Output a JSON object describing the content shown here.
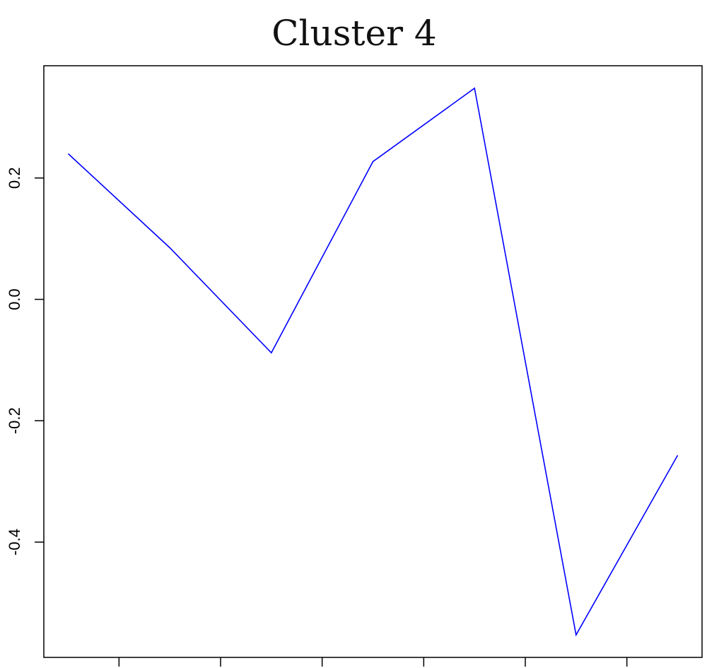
{
  "chart_data": {
    "type": "line",
    "title": "Cluster 4",
    "xlabel": "",
    "ylabel": "",
    "x": [
      1,
      2,
      3,
      4,
      5,
      6,
      7
    ],
    "xlim": [
      0.76,
      7.24
    ],
    "x_ticks": [
      1.5,
      2.5,
      3.5,
      4.5,
      5.5,
      6.5
    ],
    "y_ticks": [
      {
        "value": 0.2,
        "label": "0.2"
      },
      {
        "value": 0.0,
        "label": "0.0"
      },
      {
        "value": -0.2,
        "label": "-0.2"
      },
      {
        "value": -0.4,
        "label": "-0.4"
      }
    ],
    "ylim": [
      -0.59,
      0.385
    ],
    "series": [
      {
        "color": "#0000ff",
        "values": [
          0.24,
          0.085,
          -0.088,
          0.227,
          0.348,
          -0.553,
          -0.257
        ]
      }
    ],
    "grid": false,
    "legend": "none"
  }
}
